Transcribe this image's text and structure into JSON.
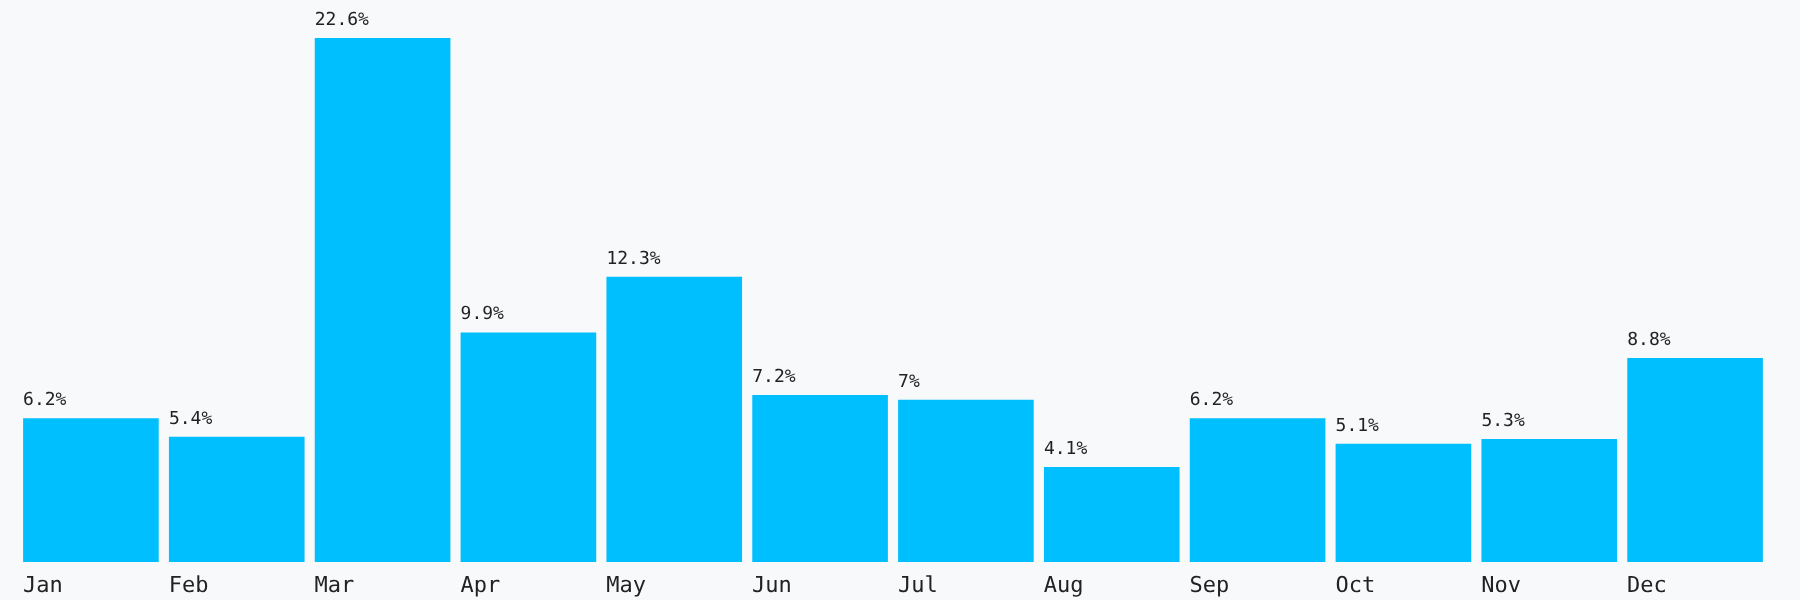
{
  "chart_data": {
    "type": "bar",
    "categories": [
      "Jan",
      "Feb",
      "Mar",
      "Apr",
      "May",
      "Jun",
      "Jul",
      "Aug",
      "Sep",
      "Oct",
      "Nov",
      "Dec"
    ],
    "values": [
      6.2,
      5.4,
      22.6,
      9.9,
      12.3,
      7.2,
      7,
      4.1,
      6.2,
      5.1,
      5.3,
      8.8
    ],
    "value_labels": [
      "6.2%",
      "5.4%",
      "22.6%",
      "9.9%",
      "12.3%",
      "7.2%",
      "7%",
      "4.1%",
      "6.2%",
      "5.1%",
      "5.3%",
      "8.8%"
    ],
    "color": "#00bfff",
    "grid": false
  }
}
